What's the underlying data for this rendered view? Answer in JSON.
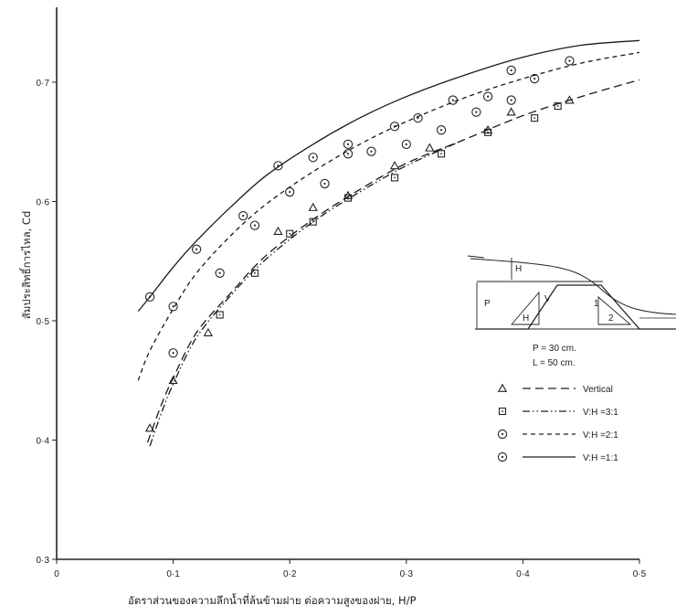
{
  "chart_data": {
    "type": "scatter",
    "title": "",
    "xlabel": "อัตราส่วนของความลึกน้ำที่ล้นข้ามฝาย ต่อความสูงของฝาย, H/P",
    "ylabel": "สัมประสิทธิ์การไหล, Cd",
    "xlim": [
      0,
      0.5
    ],
    "ylim": [
      0.3,
      0.76
    ],
    "x_ticks": [
      {
        "value": 0,
        "label": "0"
      },
      {
        "value": 0.1,
        "label": "0·1"
      },
      {
        "value": 0.2,
        "label": "0·2"
      },
      {
        "value": 0.3,
        "label": "0·3"
      },
      {
        "value": 0.4,
        "label": "0·4"
      },
      {
        "value": 0.5,
        "label": "0·5"
      }
    ],
    "y_ticks": [
      {
        "value": 0.3,
        "label": "0·3"
      },
      {
        "value": 0.4,
        "label": "0·4"
      },
      {
        "value": 0.5,
        "label": "0·5"
      },
      {
        "value": 0.6,
        "label": "0·6"
      },
      {
        "value": 0.7,
        "label": "0·7"
      }
    ],
    "grid": false,
    "legend_position": "right",
    "series": [
      {
        "name": "Vertical",
        "marker": "triangle",
        "line_style": "long-dash",
        "points": [
          [
            0.08,
            0.41
          ],
          [
            0.1,
            0.45
          ],
          [
            0.13,
            0.49
          ],
          [
            0.19,
            0.575
          ],
          [
            0.22,
            0.595
          ],
          [
            0.25,
            0.605
          ],
          [
            0.29,
            0.63
          ],
          [
            0.32,
            0.645
          ],
          [
            0.37,
            0.66
          ],
          [
            0.39,
            0.675
          ],
          [
            0.44,
            0.685
          ]
        ],
        "curve": [
          [
            0.078,
            0.398
          ],
          [
            0.09,
            0.43
          ],
          [
            0.1,
            0.452
          ],
          [
            0.12,
            0.49
          ],
          [
            0.15,
            0.524
          ],
          [
            0.18,
            0.555
          ],
          [
            0.22,
            0.585
          ],
          [
            0.26,
            0.61
          ],
          [
            0.3,
            0.632
          ],
          [
            0.35,
            0.652
          ],
          [
            0.4,
            0.672
          ],
          [
            0.45,
            0.688
          ],
          [
            0.5,
            0.702
          ]
        ]
      },
      {
        "name": "V:H =3:1",
        "marker": "square",
        "line_style": "dash-dot-dot",
        "points": [
          [
            0.14,
            0.505
          ],
          [
            0.17,
            0.54
          ],
          [
            0.2,
            0.573
          ],
          [
            0.22,
            0.583
          ],
          [
            0.25,
            0.603
          ],
          [
            0.29,
            0.62
          ],
          [
            0.33,
            0.64
          ],
          [
            0.37,
            0.658
          ],
          [
            0.41,
            0.67
          ],
          [
            0.43,
            0.68
          ]
        ],
        "curve": [
          [
            0.08,
            0.395
          ],
          [
            0.09,
            0.423
          ],
          [
            0.1,
            0.447
          ],
          [
            0.12,
            0.486
          ],
          [
            0.15,
            0.522
          ],
          [
            0.18,
            0.552
          ],
          [
            0.22,
            0.583
          ],
          [
            0.26,
            0.608
          ],
          [
            0.3,
            0.63
          ],
          [
            0.35,
            0.652
          ]
        ]
      },
      {
        "name": "V:H =2:1",
        "marker": "circle-dot",
        "line_style": "short-dash",
        "points": [
          [
            0.1,
            0.473
          ],
          [
            0.16,
            0.588
          ],
          [
            0.17,
            0.58
          ],
          [
            0.23,
            0.615
          ],
          [
            0.25,
            0.64
          ],
          [
            0.27,
            0.642
          ],
          [
            0.3,
            0.648
          ],
          [
            0.33,
            0.66
          ],
          [
            0.36,
            0.675
          ],
          [
            0.39,
            0.685
          ]
        ],
        "curve": [
          [
            0.07,
            0.45
          ],
          [
            0.08,
            0.475
          ],
          [
            0.1,
            0.51
          ],
          [
            0.12,
            0.54
          ],
          [
            0.15,
            0.572
          ],
          [
            0.18,
            0.598
          ],
          [
            0.22,
            0.625
          ],
          [
            0.26,
            0.648
          ],
          [
            0.3,
            0.667
          ],
          [
            0.35,
            0.687
          ],
          [
            0.4,
            0.703
          ],
          [
            0.45,
            0.716
          ],
          [
            0.5,
            0.725
          ]
        ]
      },
      {
        "name": "V:H =1:1",
        "marker": "circle-dot",
        "line_style": "solid",
        "points": [
          [
            0.08,
            0.52
          ],
          [
            0.1,
            0.512
          ],
          [
            0.12,
            0.56
          ],
          [
            0.14,
            0.54
          ],
          [
            0.19,
            0.63
          ],
          [
            0.2,
            0.608
          ],
          [
            0.22,
            0.637
          ],
          [
            0.25,
            0.648
          ],
          [
            0.29,
            0.663
          ],
          [
            0.31,
            0.67
          ],
          [
            0.34,
            0.685
          ],
          [
            0.37,
            0.688
          ],
          [
            0.39,
            0.71
          ],
          [
            0.41,
            0.703
          ],
          [
            0.44,
            0.718
          ]
        ],
        "curve": [
          [
            0.07,
            0.508
          ],
          [
            0.08,
            0.52
          ],
          [
            0.1,
            0.545
          ],
          [
            0.12,
            0.567
          ],
          [
            0.15,
            0.596
          ],
          [
            0.18,
            0.622
          ],
          [
            0.22,
            0.648
          ],
          [
            0.26,
            0.67
          ],
          [
            0.3,
            0.688
          ],
          [
            0.35,
            0.706
          ],
          [
            0.4,
            0.721
          ],
          [
            0.45,
            0.731
          ],
          [
            0.5,
            0.735
          ]
        ]
      }
    ],
    "inset": {
      "labels": {
        "h": "H",
        "p": "P",
        "v": "V",
        "h2": "H",
        "one": "1",
        "two": "2"
      },
      "p_text": "P = 30 cm.",
      "l_text": "L = 50 cm."
    }
  }
}
